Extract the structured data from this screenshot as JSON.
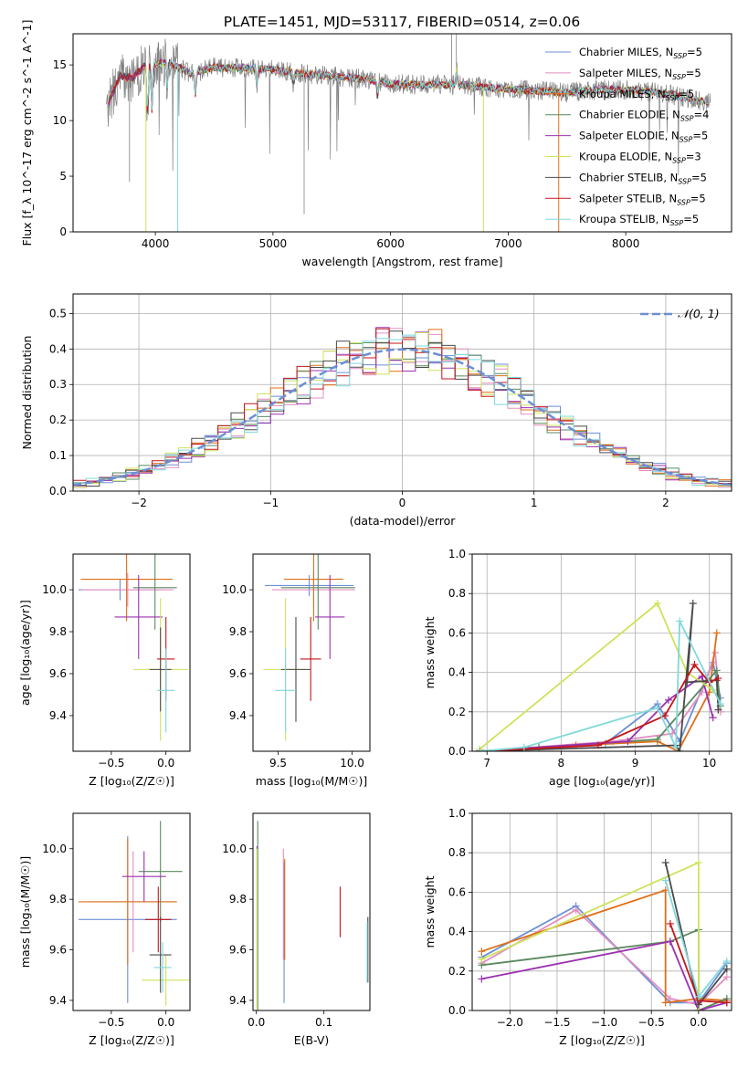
{
  "figure": {
    "title": "PLATE=1451, MJD=53117, FIBERID=0514, z=0.06"
  },
  "series": [
    {
      "name": "Chabrier MILES, N$_{SSP}$=5",
      "label": "Chabrier MILES, N",
      "sub": "SSP",
      "suffix": "=5",
      "color": "#6b8fd6"
    },
    {
      "name": "Salpeter MILES, N$_{SSP}$=5",
      "label": "Salpeter MILES, N",
      "sub": "SSP",
      "suffix": "=5",
      "color": "#e38ec0"
    },
    {
      "name": "Kroupa MILES, N$_{SSP}$=5",
      "label": "Kroupa MILES, N",
      "sub": "SSP",
      "suffix": "=5",
      "color": "#e06f17"
    },
    {
      "name": "Chabrier ELODIE, N$_{SSP}$=4",
      "label": "Chabrier ELODIE, N",
      "sub": "SSP",
      "suffix": "=4",
      "color": "#5a8a5e"
    },
    {
      "name": "Salpeter ELODIE, N$_{SSP}$=5",
      "label": "Salpeter ELODIE, N",
      "sub": "SSP",
      "suffix": "=5",
      "color": "#9b30b0"
    },
    {
      "name": "Kroupa ELODIE, N$_{SSP}$=3",
      "label": "Kroupa ELODIE, N",
      "sub": "SSP",
      "suffix": "=3",
      "color": "#cde35a"
    },
    {
      "name": "Chabrier STELIB, N$_{SSP}$=5",
      "label": "Chabrier STELIB, N",
      "sub": "SSP",
      "suffix": "=5",
      "color": "#4a4a4a"
    },
    {
      "name": "Salpeter STELIB, N$_{SSP}$=5",
      "label": "Salpeter STELIB, N",
      "sub": "SSP",
      "suffix": "=5",
      "color": "#c4161c"
    },
    {
      "name": "Kroupa STELIB, N$_{SSP}$=5",
      "label": "Kroupa STELIB, N",
      "sub": "SSP",
      "suffix": "=5",
      "color": "#7fd8dc"
    }
  ],
  "chart_data": [
    {
      "id": "spectrum",
      "type": "line",
      "xlabel": "wavelength [Angstrom, rest frame]",
      "ylabel": "Flux [f_λ 10^-17 erg cm^-2 s^-1 A^-1]",
      "xlim": [
        3300,
        8900
      ],
      "ylim": [
        0,
        17.8
      ],
      "xticks": [
        4000,
        5000,
        6000,
        7000,
        8000
      ],
      "yticks": [
        0,
        5,
        10,
        15
      ],
      "grid": false,
      "legend": "upper right",
      "data_color": "#808080",
      "data_anchors": [
        [
          3600,
          11.5
        ],
        [
          3700,
          14.0
        ],
        [
          3800,
          13.8
        ],
        [
          3900,
          14.8
        ],
        [
          4000,
          15.0
        ],
        [
          4100,
          15.3
        ],
        [
          4300,
          14.2
        ],
        [
          4500,
          14.8
        ],
        [
          4800,
          14.7
        ],
        [
          5000,
          14.6
        ],
        [
          5200,
          14.3
        ],
        [
          5500,
          14.0
        ],
        [
          5800,
          13.7
        ],
        [
          6000,
          13.3
        ],
        [
          6300,
          13.2
        ],
        [
          6600,
          13.2
        ],
        [
          6900,
          12.9
        ],
        [
          7200,
          12.7
        ],
        [
          7500,
          12.5
        ],
        [
          7800,
          12.8
        ],
        [
          8100,
          12.7
        ],
        [
          8400,
          12.3
        ],
        [
          8700,
          11.6
        ]
      ],
      "model_range": [
        3600,
        8700
      ]
    },
    {
      "id": "residuals",
      "type": "histogram",
      "xlabel": "(data-model)/error",
      "ylabel": "Normed distribution",
      "xlim": [
        -2.5,
        2.5
      ],
      "ylim": [
        0,
        0.555
      ],
      "xticks": [
        -2,
        -1,
        0,
        1,
        2
      ],
      "yticks": [
        0.0,
        0.1,
        0.2,
        0.3,
        0.4,
        0.5
      ],
      "grid": true,
      "legend": "upper right",
      "legend_label": "𝒩(0, 1)",
      "gaussian_color": "#6b8fd6",
      "bin_width": 0.1
    },
    {
      "id": "age-vs-Z",
      "type": "scatter",
      "xlabel": "Z [log₁₀(Z/Z☉)]",
      "ylabel": "age  [log₁₀(age/yr)]",
      "xlim": [
        -0.85,
        0.22
      ],
      "ylim": [
        9.23,
        10.17
      ],
      "xticks": [
        -0.5,
        0.0
      ],
      "yticks": [
        9.4,
        9.6,
        9.8,
        10.0
      ],
      "points": [
        {
          "x": -0.42,
          "y": 10.0,
          "xerr": 0.38,
          "yerr": 0.05
        },
        {
          "x": -0.35,
          "y": 10.0,
          "xerr": 0.42,
          "yerr": 0.08
        },
        {
          "x": -0.36,
          "y": 10.05,
          "xerr": 0.42,
          "yerr": 0.2
        },
        {
          "x": -0.1,
          "y": 10.01,
          "xerr": 0.2,
          "yerr": 0.2
        },
        {
          "x": -0.25,
          "y": 9.87,
          "xerr": 0.22,
          "yerr": 0.2
        },
        {
          "x": -0.05,
          "y": 9.62,
          "xerr": 0.25,
          "yerr": 0.34
        },
        {
          "x": -0.05,
          "y": 9.62,
          "xerr": 0.1,
          "yerr": 0.2
        },
        {
          "x": 0.0,
          "y": 9.67,
          "xerr": 0.08,
          "yerr": 0.2
        },
        {
          "x": 0.0,
          "y": 9.52,
          "xerr": 0.08,
          "yerr": 0.2
        }
      ]
    },
    {
      "id": "age-vs-mass",
      "type": "scatter",
      "xlabel": "mass [log₁₀(M/M☉)]",
      "ylabel": "",
      "xlim": [
        9.33,
        10.12
      ],
      "ylim": [
        9.23,
        10.17
      ],
      "xticks": [
        9.5,
        10.0
      ],
      "yticks": [
        9.4,
        9.6,
        9.8,
        10.0
      ],
      "points": [
        {
          "x": 9.71,
          "y": 10.02,
          "xerr": 0.3,
          "yerr": 0.05
        },
        {
          "x": 9.74,
          "y": 10.0,
          "xerr": 0.28,
          "yerr": 0.08
        },
        {
          "x": 9.74,
          "y": 10.05,
          "xerr": 0.2,
          "yerr": 0.2
        },
        {
          "x": 9.77,
          "y": 10.01,
          "xerr": 0.25,
          "yerr": 0.2
        },
        {
          "x": 9.85,
          "y": 9.87,
          "xerr": 0.1,
          "yerr": 0.2
        },
        {
          "x": 9.55,
          "y": 9.62,
          "xerr": 0.15,
          "yerr": 0.34
        },
        {
          "x": 9.62,
          "y": 9.62,
          "xerr": 0.1,
          "yerr": 0.25
        },
        {
          "x": 9.72,
          "y": 9.67,
          "xerr": 0.07,
          "yerr": 0.2
        },
        {
          "x": 9.55,
          "y": 9.52,
          "xerr": 0.07,
          "yerr": 0.2
        }
      ]
    },
    {
      "id": "massweight-vs-age",
      "type": "line",
      "xlabel": "age  [log₁₀(age/yr)]",
      "ylabel": "mass weight",
      "xlim": [
        6.8,
        10.3
      ],
      "ylim": [
        0,
        1.0
      ],
      "xticks": [
        7,
        8,
        9,
        10
      ],
      "yticks": [
        0.0,
        0.2,
        0.4,
        0.6,
        0.8,
        1.0
      ],
      "grid": true,
      "series_points": [
        [
          [
            6.9,
            0.0
          ],
          [
            8.6,
            0.04
          ],
          [
            9.3,
            0.24
          ],
          [
            9.6,
            0.05
          ],
          [
            10.05,
            0.45
          ],
          [
            10.15,
            0.27
          ]
        ],
        [
          [
            6.9,
            0.0
          ],
          [
            8.7,
            0.05
          ],
          [
            9.5,
            0.09
          ],
          [
            9.9,
            0.3
          ],
          [
            10.08,
            0.5
          ],
          [
            10.15,
            0.2
          ]
        ],
        [
          [
            6.9,
            0.0
          ],
          [
            8.2,
            0.03
          ],
          [
            9.3,
            0.05
          ],
          [
            9.58,
            0.0
          ],
          [
            10.0,
            0.3
          ],
          [
            10.1,
            0.6
          ]
        ],
        [
          [
            6.9,
            0.0
          ],
          [
            7.7,
            0.02
          ],
          [
            9.3,
            0.06
          ],
          [
            10.1,
            0.41
          ],
          [
            10.15,
            0.23
          ]
        ],
        [
          [
            6.9,
            0.0
          ],
          [
            8.9,
            0.05
          ],
          [
            9.45,
            0.26
          ],
          [
            9.9,
            0.38
          ],
          [
            10.05,
            0.17
          ]
        ],
        [
          [
            6.9,
            0.01
          ],
          [
            9.3,
            0.75
          ],
          [
            9.7,
            0.4
          ],
          [
            10.05,
            0.31
          ]
        ],
        [
          [
            6.9,
            0.0
          ],
          [
            9.55,
            0.03
          ],
          [
            9.6,
            0.0
          ],
          [
            9.78,
            0.75
          ],
          [
            9.7,
            0.35
          ],
          [
            10.1,
            0.36
          ],
          [
            10.12,
            0.21
          ]
        ],
        [
          [
            6.9,
            0.0
          ],
          [
            8.5,
            0.03
          ],
          [
            9.4,
            0.18
          ],
          [
            9.8,
            0.44
          ],
          [
            10.0,
            0.35
          ],
          [
            10.12,
            0.37
          ]
        ],
        [
          [
            6.9,
            0.0
          ],
          [
            7.5,
            0.02
          ],
          [
            9.3,
            0.22
          ],
          [
            9.55,
            0.02
          ],
          [
            9.6,
            0.66
          ],
          [
            10.15,
            0.24
          ]
        ]
      ]
    },
    {
      "id": "mass-vs-Z",
      "type": "scatter",
      "xlabel": "Z [log₁₀(Z/Z☉)]",
      "ylabel": "mass [log₁₀(M/M☉)]",
      "xlim": [
        -0.85,
        0.22
      ],
      "ylim": [
        9.36,
        10.14
      ],
      "xticks": [
        -0.5,
        0.0
      ],
      "yticks": [
        9.4,
        9.6,
        9.8,
        10.0
      ],
      "points": [
        {
          "x": -0.35,
          "y": 9.72,
          "xerr": 0.45,
          "yerr": 0.33
        },
        {
          "x": -0.3,
          "y": 9.79,
          "xerr": 0.4,
          "yerr": 0.2
        },
        {
          "x": -0.35,
          "y": 9.79,
          "xerr": 0.45,
          "yerr": 0.25
        },
        {
          "x": -0.05,
          "y": 9.91,
          "xerr": 0.2,
          "yerr": 0.2
        },
        {
          "x": -0.2,
          "y": 9.89,
          "xerr": 0.2,
          "yerr": 0.1
        },
        {
          "x": 0.0,
          "y": 9.48,
          "xerr": 0.22,
          "yerr": 0.1
        },
        {
          "x": -0.05,
          "y": 9.58,
          "xerr": 0.1,
          "yerr": 0.15
        },
        {
          "x": -0.07,
          "y": 9.72,
          "xerr": 0.12,
          "yerr": 0.13
        },
        {
          "x": -0.03,
          "y": 9.53,
          "xerr": 0.08,
          "yerr": 0.1
        }
      ]
    },
    {
      "id": "mass-vs-ebv",
      "type": "scatter",
      "xlabel": "E(B-V)",
      "ylabel": "",
      "xlim": [
        -0.005,
        0.168
      ],
      "ylim": [
        9.36,
        10.14
      ],
      "xticks": [
        0.0,
        0.1
      ],
      "yticks": [
        9.4,
        9.6,
        9.8,
        10.0
      ],
      "points": [
        {
          "x": 0.041,
          "y": 9.67,
          "xerr": 0.0,
          "yerr": 0.28
        },
        {
          "x": 0.04,
          "y": 9.78,
          "xerr": 0.0,
          "yerr": 0.22
        },
        {
          "x": 0.042,
          "y": 9.76,
          "xerr": 0.0,
          "yerr": 0.2
        },
        {
          "x": 0.002,
          "y": 9.73,
          "xerr": 0.0,
          "yerr": 0.38
        },
        {
          "x": 0.001,
          "y": 9.69,
          "xerr": 0.0,
          "yerr": 0.32
        },
        {
          "x": 0.001,
          "y": 9.68,
          "xerr": 0.0,
          "yerr": 0.32
        },
        {
          "x": 0.165,
          "y": 9.6,
          "xerr": 0.0,
          "yerr": 0.13
        },
        {
          "x": 0.124,
          "y": 9.75,
          "xerr": 0.0,
          "yerr": 0.1
        },
        {
          "x": 0.164,
          "y": 9.59,
          "xerr": 0.0,
          "yerr": 0.12
        }
      ]
    },
    {
      "id": "massweight-vs-Z",
      "type": "line",
      "xlabel": "Z [log₁₀(Z/Z☉)]",
      "ylabel": "mass weight",
      "xlim": [
        -2.4,
        0.35
      ],
      "ylim": [
        0,
        1.0
      ],
      "xticks": [
        -2.0,
        -1.5,
        -1.0,
        -0.5,
        0.0
      ],
      "yticks": [
        0.0,
        0.2,
        0.4,
        0.6,
        0.8,
        1.0
      ],
      "grid": true,
      "series_points": [
        [
          [
            -2.3,
            0.27
          ],
          [
            -1.3,
            0.53
          ],
          [
            -0.3,
            0.04
          ],
          [
            0.0,
            0.04
          ],
          [
            0.3,
            0.24
          ]
        ],
        [
          [
            -2.3,
            0.24
          ],
          [
            -1.3,
            0.51
          ],
          [
            -0.3,
            0.06
          ],
          [
            0.0,
            0.03
          ],
          [
            0.3,
            0.17
          ]
        ],
        [
          [
            -2.3,
            0.3
          ],
          [
            -0.35,
            0.61
          ],
          [
            -0.35,
            0.04
          ],
          [
            0.0,
            0.06
          ],
          [
            0.3,
            0.05
          ]
        ],
        [
          [
            -2.3,
            0.23
          ],
          [
            -0.3,
            0.35
          ],
          [
            0.0,
            0.41
          ],
          [
            0.0,
            0.0
          ],
          [
            0.3,
            0.06
          ]
        ],
        [
          [
            -2.3,
            0.16
          ],
          [
            -0.3,
            0.35
          ],
          [
            0.0,
            0.0
          ],
          [
            0.3,
            0.04
          ]
        ],
        [
          [
            -2.3,
            0.26
          ],
          [
            0.0,
            0.75
          ],
          [
            0.0,
            0.0
          ]
        ],
        [
          [
            -0.35,
            0.75
          ],
          [
            0.0,
            0.03
          ],
          [
            0.3,
            0.21
          ]
        ],
        [
          [
            -0.3,
            0.44
          ],
          [
            0.0,
            0.05
          ],
          [
            0.3,
            0.04
          ]
        ],
        [
          [
            -0.35,
            0.66
          ],
          [
            0.0,
            0.07
          ],
          [
            0.3,
            0.25
          ]
        ]
      ]
    }
  ]
}
